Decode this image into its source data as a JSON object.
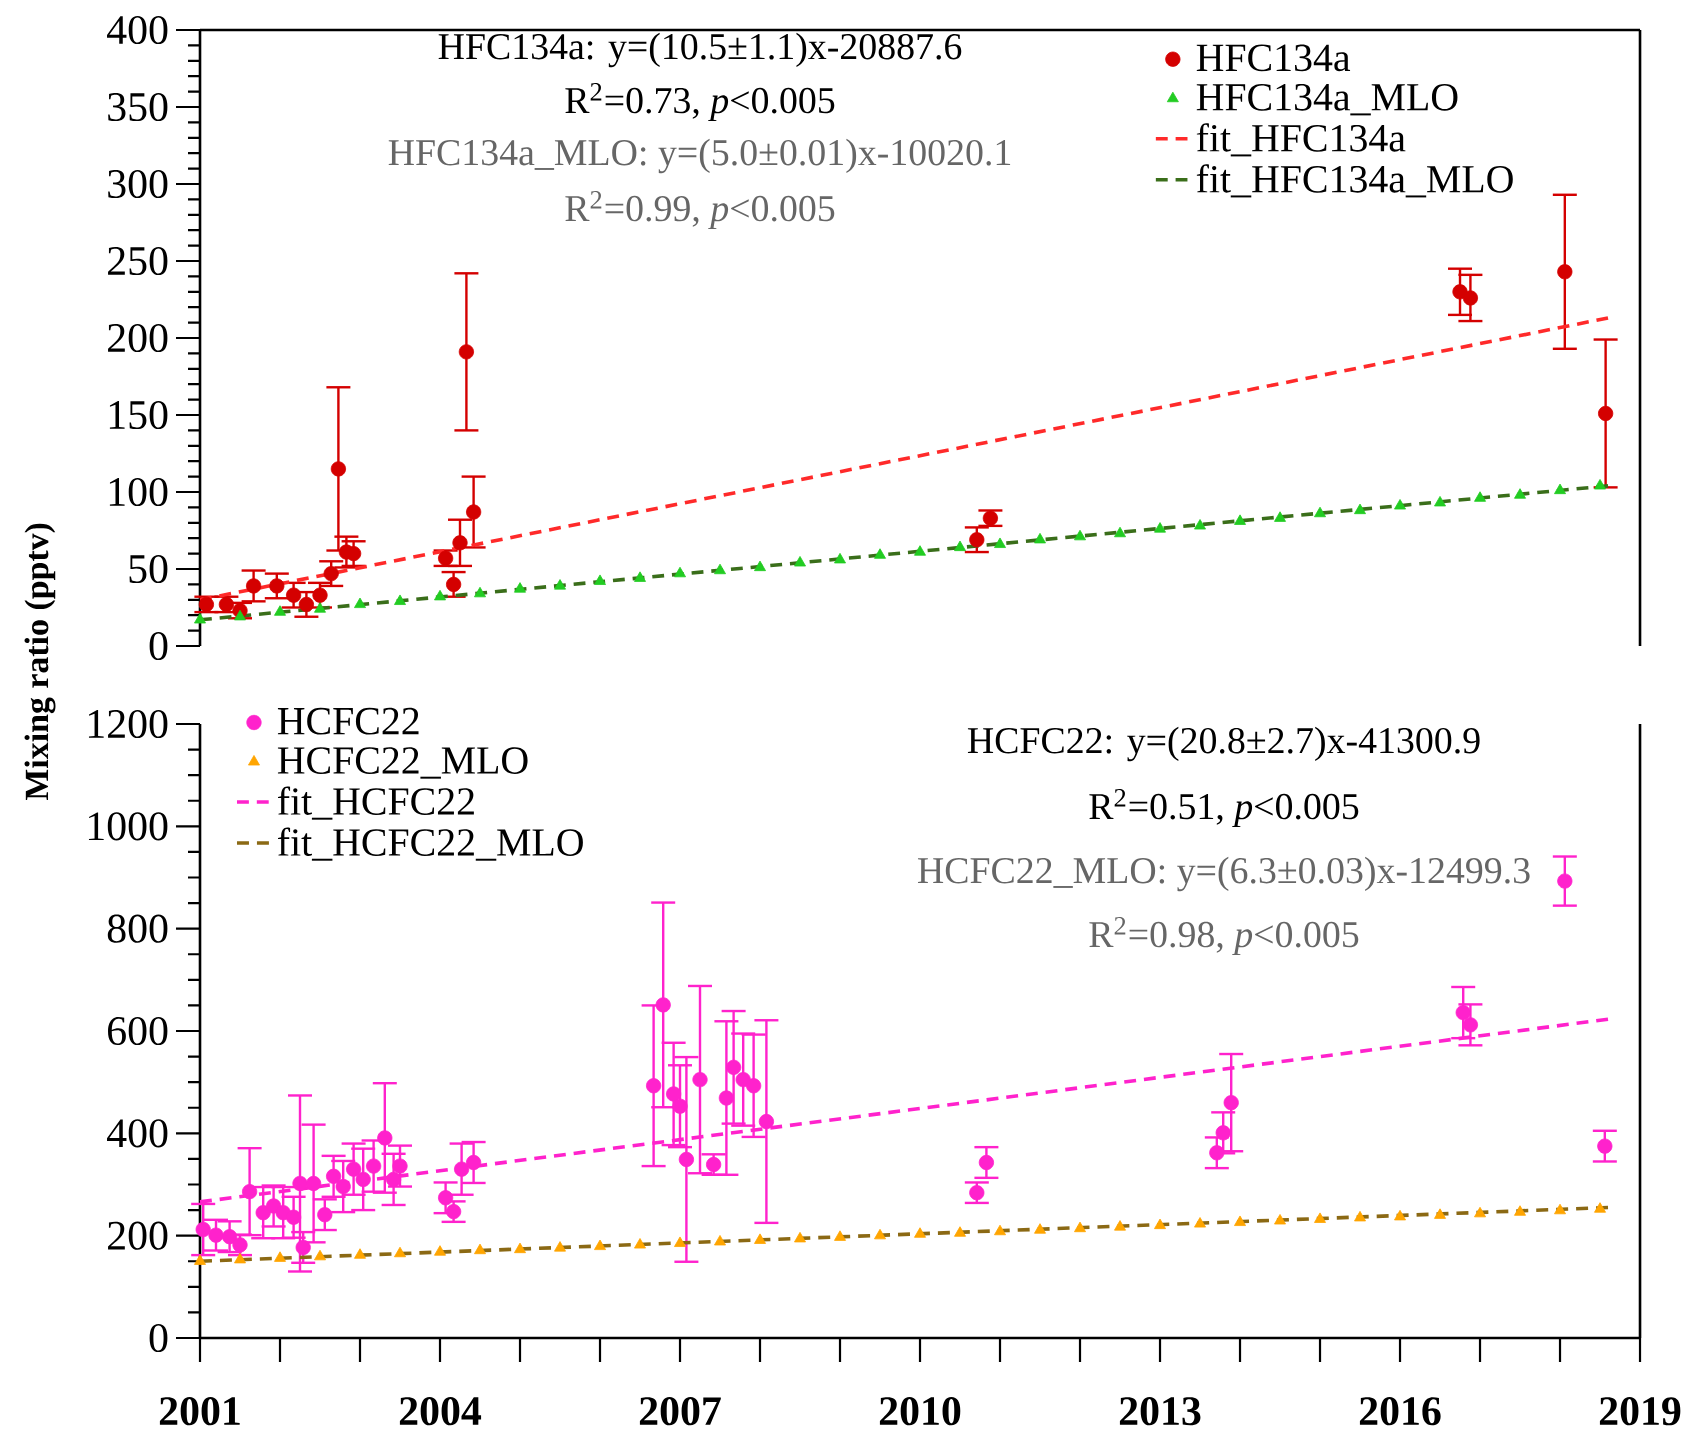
{
  "chart_data": [
    {
      "type": "scatter",
      "ylabel": "Mixing ratio  (pptv)",
      "annotations": [
        "HFC134a: y=(10.5±1.1)x-20887.6",
        "R$^{2}$=0.73, *p*<0.005",
        "HFC134a_MLO: y=(5.0±0.01)x-10020.1",
        "R$^{2}$=0.99, *p*<0.005"
      ],
      "xlim": [
        2001,
        2019
      ],
      "ylim": [
        0,
        400
      ],
      "yticks": [
        0,
        50,
        100,
        150,
        200,
        250,
        300,
        350,
        400
      ],
      "tick_labels": "y",
      "legend": "top right",
      "series": [
        {
          "name": "HFC134a",
          "marker": "circle",
          "color": "#d40000",
          "x": [
            2001.08,
            2001.33,
            2001.5,
            2001.67,
            2001.96,
            2002.17,
            2002.33,
            2002.5,
            2002.64,
            2002.73,
            2002.83,
            2002.92,
            2004.07,
            2004.17,
            2004.25,
            2004.33,
            2004.42,
            2010.71,
            2010.88,
            2016.75,
            2016.88,
            2018.06,
            2018.57
          ],
          "values": [
            27,
            27,
            23,
            39,
            39,
            33,
            27,
            33,
            47,
            115,
            61,
            60,
            57,
            40,
            67,
            191,
            87,
            69,
            83,
            230,
            226,
            243,
            151
          ],
          "errors": [
            5,
            5,
            5,
            10,
            8,
            8,
            8,
            8,
            8,
            53,
            10,
            8,
            5,
            8,
            15,
            51,
            23,
            8,
            5,
            15,
            15,
            50,
            48
          ]
        },
        {
          "name": "HFC134a_MLO",
          "marker": "triangle",
          "color": "#22cc22",
          "x": [
            2001.0,
            2001.5,
            2002.0,
            2002.5,
            2003.0,
            2003.5,
            2004.0,
            2004.5,
            2005.0,
            2005.5,
            2006.0,
            2006.5,
            2007.0,
            2007.5,
            2008.0,
            2008.5,
            2009.0,
            2009.5,
            2010.0,
            2010.5,
            2011.0,
            2011.5,
            2012.0,
            2012.5,
            2013.0,
            2013.5,
            2014.0,
            2014.5,
            2015.0,
            2015.5,
            2016.0,
            2016.5,
            2017.0,
            2017.5,
            2018.0,
            2018.5
          ],
          "values": [
            17,
            19,
            22,
            24,
            27,
            29,
            32,
            34,
            37,
            39,
            42,
            44,
            47,
            49,
            51,
            54,
            56,
            59,
            61,
            64,
            66,
            69,
            71,
            73,
            76,
            78,
            81,
            83,
            86,
            88,
            91,
            93,
            96,
            98,
            101,
            104
          ]
        },
        {
          "name": "fit_HFC134a",
          "type": "line",
          "marker": "none",
          "line_style": "dashed",
          "color": "#ff2a2a",
          "x": [
            2001,
            2018.6
          ],
          "values": [
            30,
            213
          ]
        },
        {
          "name": "fit_HFC134a_MLO",
          "type": "line",
          "marker": "none",
          "line_style": "dashed",
          "color": "#3a6e1a",
          "x": [
            2001,
            2018.6
          ],
          "values": [
            17,
            104
          ]
        }
      ]
    },
    {
      "type": "scatter",
      "annotations": [
        "HCFC22: y=(20.8±2.7)x-41300.9",
        "R$^{2}$=0.51, *p*<0.005",
        "HCFC22_MLO: y=(6.3±0.03)x-12499.3",
        "R$^{2}$=0.98, *p*<0.005"
      ],
      "xlim": [
        2001,
        2019
      ],
      "ylim": [
        0,
        1200
      ],
      "yticks": [
        0,
        200,
        400,
        600,
        800,
        1000,
        1200
      ],
      "legend": "top left",
      "xticks": [
        2001,
        {
          "value": 2002,
          "label": null
        },
        {
          "value": 2003,
          "label": null
        },
        2004,
        {
          "value": 2005,
          "label": null
        },
        {
          "value": 2006,
          "label": null
        },
        2007,
        {
          "value": 2008,
          "label": null
        },
        {
          "value": 2009,
          "label": null
        },
        2010,
        {
          "value": 2011,
          "label": null
        },
        {
          "value": 2012,
          "label": null
        },
        2013,
        {
          "value": 2014,
          "label": null
        },
        {
          "value": 2015,
          "label": null
        },
        2016,
        {
          "value": 2017,
          "label": null
        },
        {
          "value": 2018,
          "label": null
        },
        2019
      ],
      "series": [
        {
          "name": "HCFC22",
          "marker": "circle",
          "color": "#ff22cc",
          "x": [
            2001.04,
            2001.2,
            2001.37,
            2001.5,
            2001.62,
            2001.79,
            2001.92,
            2002.04,
            2002.17,
            2002.25,
            2002.29,
            2002.42,
            2002.56,
            2002.67,
            2002.79,
            2002.92,
            2003.04,
            2003.17,
            2003.31,
            2003.42,
            2003.5,
            2004.07,
            2004.17,
            2004.27,
            2004.42,
            2006.67,
            2006.79,
            2006.92,
            2007.0,
            2007.08,
            2007.25,
            2007.42,
            2007.58,
            2007.67,
            2007.79,
            2007.92,
            2008.08,
            2010.71,
            2010.83,
            2013.71,
            2013.79,
            2013.89,
            2016.79,
            2016.88,
            2018.06,
            2018.56
          ],
          "values": [
            212,
            201,
            198,
            182,
            286,
            245,
            258,
            245,
            236,
            302,
            177,
            302,
            241,
            316,
            296,
            330,
            310,
            336,
            391,
            310,
            336,
            274,
            247,
            330,
            343,
            493,
            651,
            477,
            453,
            349,
            505,
            339,
            469,
            529,
            505,
            493,
            423,
            284,
            343,
            362,
            401,
            460,
            636,
            612,
            893,
            375
          ],
          "errors": [
            50,
            30,
            30,
            20,
            85,
            50,
            40,
            50,
            40,
            172,
            30,
            115,
            30,
            40,
            50,
            50,
            60,
            50,
            107,
            50,
            40,
            30,
            20,
            50,
            40,
            157,
            200,
            100,
            80,
            200,
            183,
            20,
            150,
            110,
            90,
            100,
            198,
            20,
            30,
            30,
            40,
            95,
            50,
            40,
            48,
            30
          ]
        },
        {
          "name": "HCFC22_MLO",
          "marker": "triangle",
          "color": "#ffa500",
          "x": [
            2001.0,
            2001.5,
            2002.0,
            2002.5,
            2003.0,
            2003.5,
            2004.0,
            2004.5,
            2005.0,
            2005.5,
            2006.0,
            2006.5,
            2007.0,
            2007.5,
            2008.0,
            2008.5,
            2009.0,
            2009.5,
            2010.0,
            2010.5,
            2011.0,
            2011.5,
            2012.0,
            2012.5,
            2013.0,
            2013.5,
            2014.0,
            2014.5,
            2015.0,
            2015.5,
            2016.0,
            2016.5,
            2017.0,
            2017.5,
            2018.0,
            2018.5
          ],
          "values": [
            150,
            153,
            156,
            159,
            162,
            165,
            168,
            171,
            173,
            176,
            179,
            182,
            185,
            188,
            191,
            194,
            197,
            200,
            203,
            205,
            208,
            211,
            214,
            217,
            220,
            223,
            226,
            229,
            232,
            235,
            237,
            240,
            243,
            246,
            249,
            252
          ]
        },
        {
          "name": "fit_HCFC22",
          "type": "line",
          "marker": "none",
          "line_style": "dashed",
          "color": "#ff22cc",
          "x": [
            2001,
            2018.6
          ],
          "values": [
            266,
            623
          ]
        },
        {
          "name": "fit_HCFC22_MLO",
          "type": "line",
          "marker": "none",
          "line_style": "dashed",
          "color": "#8b6914",
          "x": [
            2001,
            2018.6
          ],
          "values": [
            150,
            255
          ]
        }
      ]
    }
  ]
}
